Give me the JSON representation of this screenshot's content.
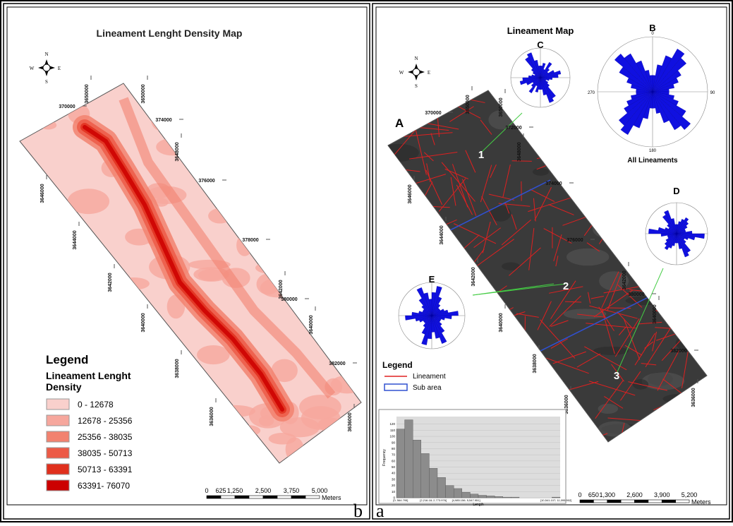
{
  "panel_b": {
    "title": "Lineament Lenght Density Map",
    "north_arrow": {
      "n": "N",
      "s": "S",
      "e": "E",
      "w": "W"
    },
    "coordinates": [
      "370000",
      "3650000",
      "3650000",
      "374000",
      "3648000",
      "3646000",
      "376000",
      "3644000",
      "378000",
      "3642000",
      "3642000",
      "380000",
      "3640000",
      "3640000",
      "382000",
      "3638000",
      "3636000",
      "3636000"
    ],
    "legend": {
      "title": "Legend",
      "subtitle": "Lineament Lenght Density",
      "classes": [
        {
          "label": "0 - 12678",
          "color": "#f9d0cc"
        },
        {
          "label": "12678 - 25356",
          "color": "#f6a79d"
        },
        {
          "label": "25356 - 38035",
          "color": "#f2826f"
        },
        {
          "label": "38035 - 50713",
          "color": "#ec5a46"
        },
        {
          "label": "50713 - 63391",
          "color": "#e0301d"
        },
        {
          "label": "63391- 76070",
          "color": "#cc0000"
        }
      ]
    },
    "scale_bar": {
      "ticks": [
        "0",
        "625",
        "1,250",
        "2,500",
        "3,750",
        "5,000"
      ],
      "unit": "Meters"
    },
    "label": "b"
  },
  "panel_a": {
    "title": "Lineament Map",
    "north_arrow": {
      "n": "N",
      "s": "S",
      "e": "E",
      "w": "W"
    },
    "coordinates": [
      "370000",
      "3650000",
      "3650000",
      "372000",
      "3648000",
      "3646000",
      "374000",
      "3644000",
      "376000",
      "3642000",
      "3642000",
      "380000",
      "3640000",
      "3640000",
      "382000",
      "3638000",
      "3636000",
      "3636000"
    ],
    "map_label": "A",
    "rose_labels": {
      "b": "B",
      "c": "C",
      "d": "D",
      "e": "E"
    },
    "rose_b_directions": [
      "0",
      "90",
      "180",
      "270"
    ],
    "rose_b_caption": "All Lineaments",
    "sub_areas": [
      "1",
      "2",
      "3"
    ],
    "legend": {
      "title": "Legend",
      "items": [
        {
          "label": "Lineament",
          "color": "#e02020"
        },
        {
          "label": "Sub area",
          "color": "#3050d0"
        }
      ]
    },
    "histogram": {
      "x_title": "Length",
      "y_title": "Frequency",
      "values": [
        112,
        127,
        94,
        72,
        48,
        33,
        20,
        15,
        9,
        6,
        4,
        3,
        2,
        1,
        1,
        0,
        0,
        0,
        0,
        1
      ],
      "ylim": [
        0,
        130
      ],
      "yticks": [
        0,
        10,
        20,
        30,
        40,
        50,
        60,
        70,
        80,
        90,
        100,
        110,
        120
      ],
      "x_labels": [
        "[0; 564.795]",
        "[2,216.18; 2,773.976]",
        "[4,985.156; 5,547.951]",
        "[10,541.107; 11,095.902]"
      ],
      "color": "#8c8c8c"
    },
    "scale_bar": {
      "ticks": [
        "0",
        "650",
        "1,300",
        "2,600",
        "3,900",
        "5,200"
      ],
      "unit": "Meters"
    },
    "label": "a"
  }
}
